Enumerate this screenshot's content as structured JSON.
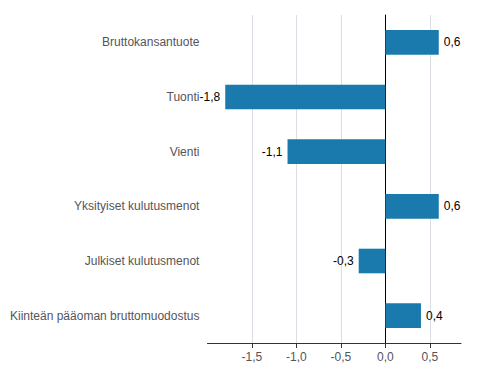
{
  "chart_data": {
    "type": "bar",
    "orientation": "horizontal",
    "categories": [
      "Kiinteän pääoman bruttomuodostus",
      "Julkiset kulutusmenot",
      "Yksityiset kulutusmenot",
      "Vienti",
      "Tuonti",
      "Bruttokansantuote"
    ],
    "values": [
      0.4,
      -0.3,
      0.6,
      -1.1,
      -1.8,
      0.6
    ],
    "value_labels": [
      "0,4",
      "-0,3",
      "0,6",
      "-1,1",
      "-1,8",
      "0,6"
    ],
    "color": "#1a7aad",
    "xlim": [
      -2.0,
      0.85
    ],
    "xticks": [
      {
        "value": -1.5,
        "label": "-1,5"
      },
      {
        "value": -1.0,
        "label": "-1,0"
      },
      {
        "value": -0.5,
        "label": "-0,5"
      },
      {
        "value": 0.0,
        "label": "0,0"
      },
      {
        "value": 0.5,
        "label": "0,5"
      }
    ],
    "grid": true,
    "data_labels": true
  }
}
